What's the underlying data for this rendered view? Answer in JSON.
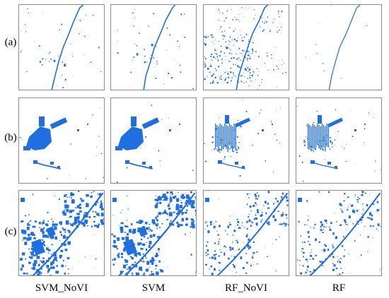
{
  "figure": {
    "row_labels": [
      "(a)",
      "(b)",
      "(c)"
    ],
    "column_labels": [
      "SVM_NoVI",
      "SVM",
      "RF_NoVI",
      "RF"
    ],
    "foreground_color": "#1f6fe0",
    "background_color": "#ffffff",
    "border_color": "#8c8c8c"
  }
}
